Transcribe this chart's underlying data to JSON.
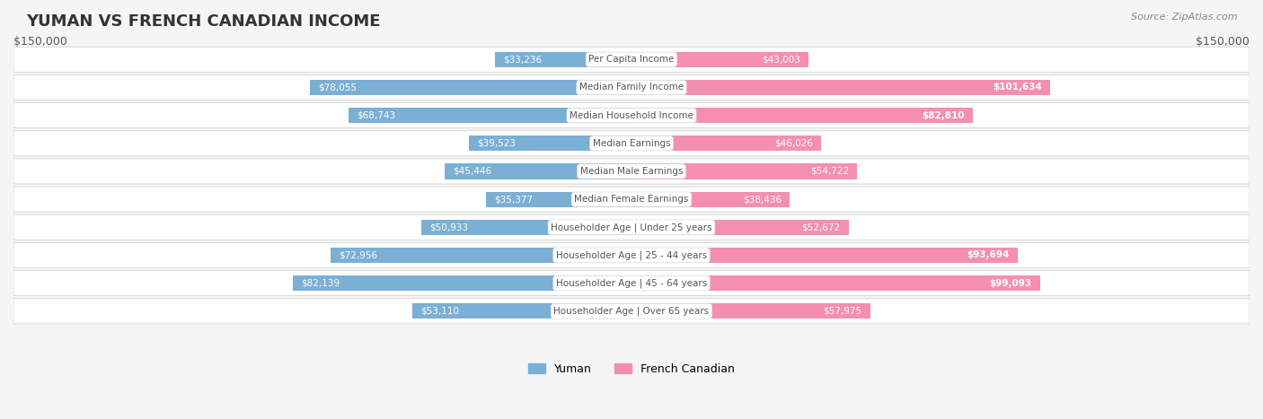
{
  "title": "YUMAN VS FRENCH CANADIAN INCOME",
  "source": "Source: ZipAtlas.com",
  "categories": [
    "Per Capita Income",
    "Median Family Income",
    "Median Household Income",
    "Median Earnings",
    "Median Male Earnings",
    "Median Female Earnings",
    "Householder Age | Under 25 years",
    "Householder Age | 25 - 44 years",
    "Householder Age | 45 - 64 years",
    "Householder Age | Over 65 years"
  ],
  "yuman_values": [
    33236,
    78055,
    68743,
    39523,
    45446,
    35377,
    50933,
    72956,
    82139,
    53110
  ],
  "french_canadian_values": [
    43003,
    101634,
    82810,
    46026,
    54722,
    38436,
    52672,
    93694,
    99093,
    57975
  ],
  "yuman_labels": [
    "$33,236",
    "$78,055",
    "$68,743",
    "$39,523",
    "$45,446",
    "$35,377",
    "$50,933",
    "$72,956",
    "$82,139",
    "$53,110"
  ],
  "french_labels": [
    "$43,003",
    "$101,634",
    "$82,810",
    "$46,026",
    "$54,722",
    "$38,436",
    "$52,672",
    "$93,694",
    "$99,093",
    "$57,975"
  ],
  "yuman_color": "#7bafd4",
  "french_color": "#f48fb1",
  "yuman_label_color_normal": "#555555",
  "french_label_color_normal": "#555555",
  "yuman_label_color_bold": "#ffffff",
  "french_label_color_bold": "#ffffff",
  "center_label_bg": "#ffffff",
  "center_label_color": "#555555",
  "max_val": 150000,
  "background_color": "#f5f5f5",
  "row_bg_color": "#ffffff",
  "legend_yuman": "Yuman",
  "legend_french": "French Canadian",
  "x_left_label": "$150,000",
  "x_right_label": "$150,000"
}
